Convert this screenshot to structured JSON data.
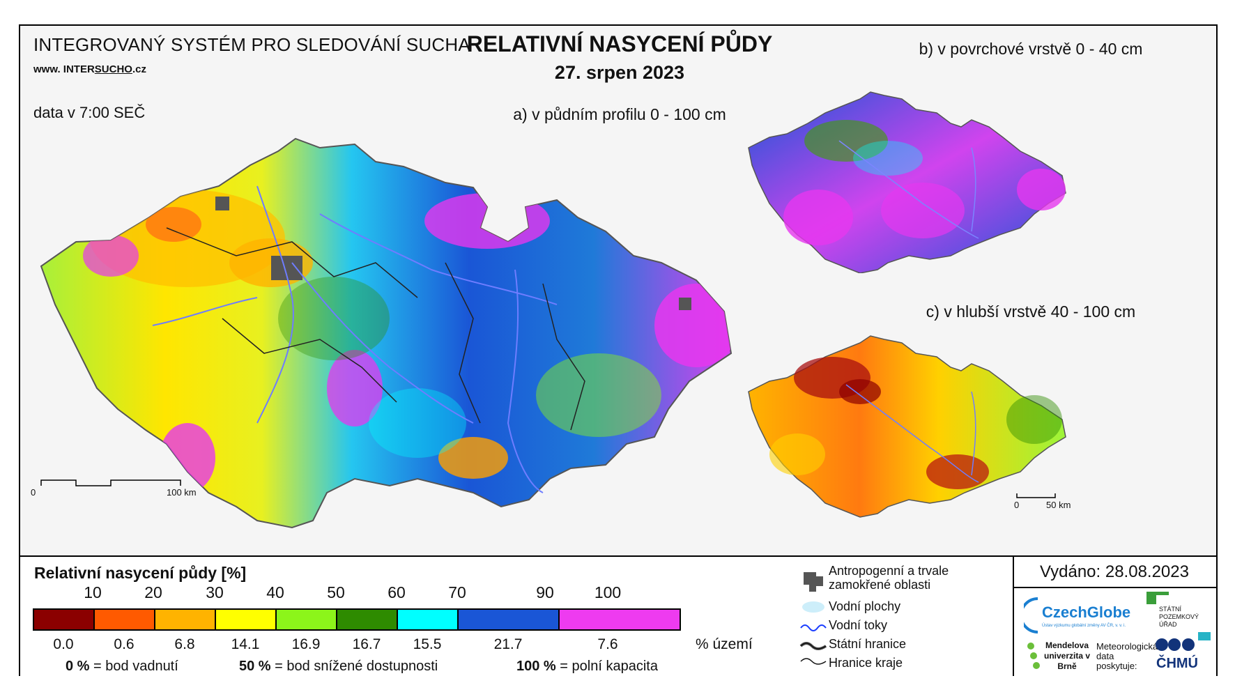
{
  "header": {
    "system_title": "INTEGROVANÝ SYSTÉM PRO SLEDOVÁNÍ SUCHA",
    "website_prefix": "www. INTER",
    "website_mid": "SUCHO",
    "website_suffix": ".cz",
    "data_time": "data v 7:00 SEČ",
    "main_title": "RELATIVNÍ NASYCENÍ PŮDY",
    "date": "27. srpen 2023"
  },
  "maps": {
    "a_label": "a) v půdním profilu 0 - 100 cm",
    "b_label": "b) v povrchové vrstvě 0 - 40 cm",
    "c_label": "c) v hlubší vrstvě 40 - 100 cm",
    "scale_a": {
      "start": "0",
      "end": "100 km"
    },
    "scale_c": {
      "start": "0",
      "end": "50 km"
    }
  },
  "legend": {
    "title": "Relativní nasycení půdy [%]",
    "class_colors": [
      "#8b0000",
      "#ff5a00",
      "#ffb300",
      "#ffff00",
      "#8cf51a",
      "#2e8b00",
      "#00ffff",
      "#1a56d6",
      "#ee3bf0"
    ],
    "tick_labels": [
      "10",
      "20",
      "30",
      "40",
      "50",
      "60",
      "70",
      "90",
      "100"
    ],
    "area_percentages": [
      "0.0",
      "0.6",
      "6.8",
      "14.1",
      "16.9",
      "16.7",
      "15.5",
      "21.7",
      "7.6"
    ],
    "area_unit": "% území",
    "notes": [
      {
        "value": "0 %",
        "text": "= bod vadnutí"
      },
      {
        "value": "50 %",
        "text": "= bod snížené dostupnosti"
      },
      {
        "value": "100 %",
        "text": "= polní kapacita"
      }
    ]
  },
  "symbols": {
    "anthropogenic": "Antropogenní a trvale zamokřené oblasti",
    "water_bodies": "Vodní plochy",
    "rivers": "Vodní toky",
    "state_border": "Státní hranice",
    "region_border": "Hranice kraje"
  },
  "issued": "Vydáno: 28.08.2023",
  "logos": {
    "czechglobe": "CzechGlobe",
    "czechglobe_sub": "Ústav výzkumu globální změny AV ČR, v. v. i.",
    "spu": "STÁTNÍ POZEMKOVÝ ÚŘAD",
    "mendelu": "Mendelova univerzita v Brně",
    "meteo": "Meteorologická data poskytuje:",
    "chmu": "ČHMÚ"
  }
}
